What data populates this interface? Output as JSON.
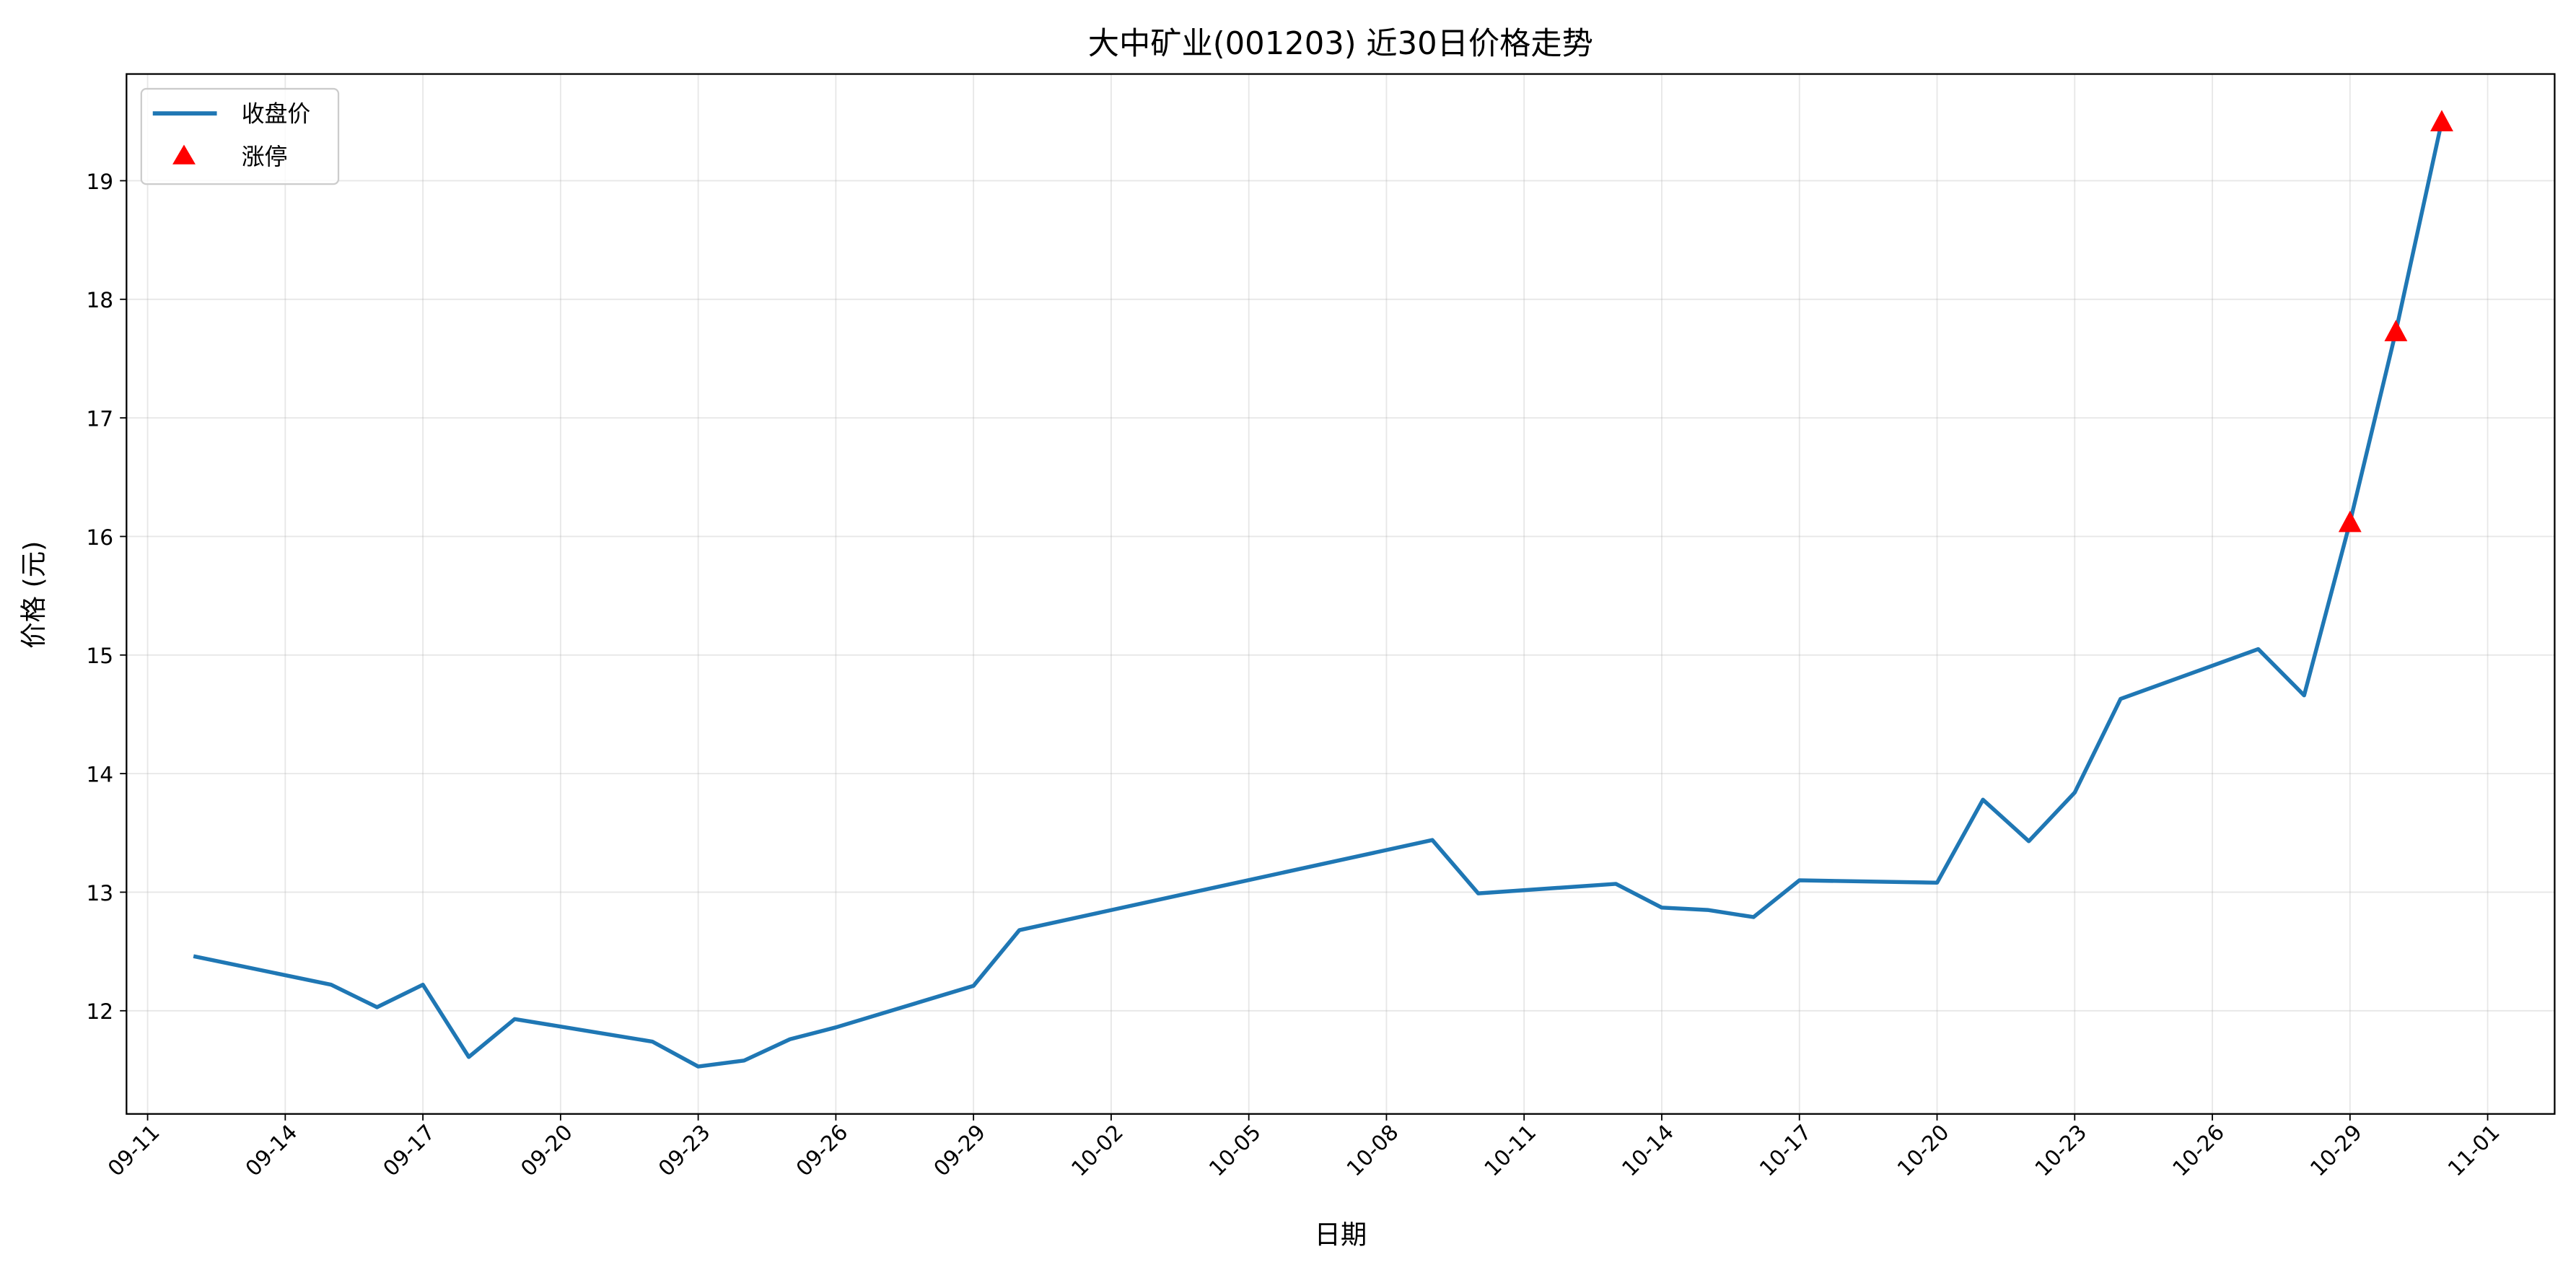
{
  "chart_data": {
    "type": "line",
    "title": "大中矿业(001203) 近30日价格走势",
    "xlabel": "日期",
    "ylabel": "价格 (元)",
    "grid": true,
    "legend_position": "top-left",
    "legend": [
      "收盘价",
      "涨停"
    ],
    "ylim": [
      11.13,
      19.9
    ],
    "xlim": [
      "09-10",
      "11-02"
    ],
    "yticks": [
      "12",
      "13",
      "14",
      "15",
      "16",
      "17",
      "18",
      "19"
    ],
    "xticks": [
      "09-11",
      "09-14",
      "09-17",
      "09-20",
      "09-23",
      "09-26",
      "09-29",
      "10-02",
      "10-05",
      "10-08",
      "10-11",
      "10-14",
      "10-17",
      "10-20",
      "10-23",
      "10-26",
      "10-29",
      "11-01"
    ],
    "colors": {
      "line": "#1f77b4",
      "limit_up": "#ff0000"
    },
    "series": [
      {
        "name": "收盘价",
        "x": [
          "09-12",
          "09-15",
          "09-16",
          "09-17",
          "09-18",
          "09-19",
          "09-22",
          "09-23",
          "09-24",
          "09-25",
          "09-26",
          "09-29",
          "09-30",
          "10-09",
          "10-10",
          "10-13",
          "10-14",
          "10-15",
          "10-16",
          "10-17",
          "10-20",
          "10-21",
          "10-22",
          "10-23",
          "10-24",
          "10-27",
          "10-28",
          "10-29",
          "10-30",
          "10-31"
        ],
        "values": [
          12.46,
          12.22,
          12.03,
          12.22,
          11.61,
          11.93,
          11.74,
          11.53,
          11.58,
          11.76,
          11.86,
          12.21,
          12.68,
          13.44,
          12.99,
          13.07,
          12.87,
          12.85,
          12.79,
          13.1,
          13.08,
          13.78,
          13.43,
          13.84,
          14.63,
          15.05,
          14.66,
          16.12,
          17.73,
          19.5
        ]
      },
      {
        "name": "涨停",
        "x": [
          "10-29",
          "10-30",
          "10-31"
        ],
        "values": [
          16.12,
          17.73,
          19.5
        ]
      }
    ]
  }
}
